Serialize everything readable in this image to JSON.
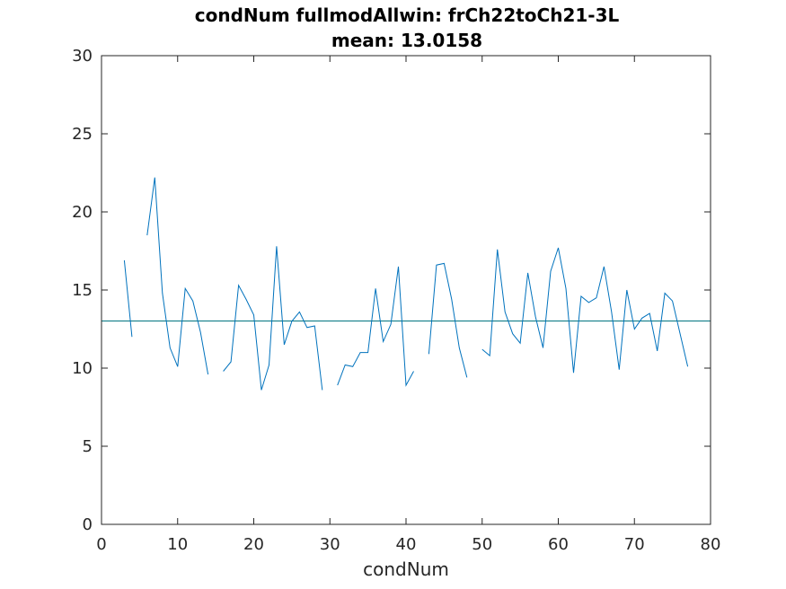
{
  "chart_data": {
    "type": "line",
    "title": "condNum fullmodAllwin: frCh22toCh21-3L",
    "subtitle": "mean: 13.0158",
    "xlabel": "condNum",
    "ylabel": "",
    "xlim": [
      0,
      80
    ],
    "ylim": [
      0,
      30
    ],
    "xticks": [
      0,
      10,
      20,
      30,
      40,
      50,
      60,
      70,
      80
    ],
    "yticks": [
      0,
      5,
      10,
      15,
      20,
      25,
      30
    ],
    "grid": false,
    "colors": {
      "series": "#0072BD",
      "mean_line": "#007480",
      "top_limit": "#C00000",
      "axes": "#262626"
    },
    "series": [
      {
        "x": [
          3,
          4,
          5,
          6,
          7,
          8,
          9,
          10,
          11,
          12,
          13,
          14,
          15,
          16,
          17,
          18,
          19,
          20,
          21,
          22,
          23,
          24,
          25,
          26,
          27,
          28,
          29,
          30,
          31,
          32,
          33,
          34,
          35,
          36,
          37,
          38,
          39,
          40,
          41,
          42,
          43,
          44,
          45,
          46,
          47,
          48,
          49,
          50,
          51,
          52,
          53,
          54,
          55,
          56,
          57,
          58,
          59,
          60,
          61,
          62,
          63,
          64,
          65,
          66,
          67,
          68,
          69,
          70,
          71,
          72,
          73,
          74,
          75,
          76,
          77
        ],
        "y": [
          16.9,
          12.0,
          null,
          18.5,
          22.2,
          14.8,
          11.3,
          10.1,
          15.1,
          14.3,
          12.3,
          9.6,
          null,
          9.8,
          10.4,
          15.3,
          14.4,
          13.4,
          8.6,
          10.2,
          17.8,
          11.5,
          13.0,
          13.6,
          12.6,
          12.7,
          8.6,
          null,
          8.9,
          10.2,
          10.1,
          11.0,
          11.0,
          15.1,
          11.7,
          12.8,
          16.5,
          8.9,
          9.8,
          null,
          10.9,
          16.6,
          16.7,
          14.4,
          11.3,
          9.4,
          null,
          11.2,
          10.8,
          17.6,
          13.6,
          12.2,
          11.6,
          16.1,
          13.3,
          11.3,
          16.2,
          17.7,
          15.1,
          9.7,
          14.6,
          14.2,
          14.5,
          16.5,
          13.6,
          9.9,
          15.0,
          12.5,
          13.2,
          13.5,
          11.1,
          14.8,
          14.3,
          12.2,
          10.1
        ]
      }
    ],
    "reference_lines": [
      {
        "axis": "y",
        "value": 13.0158
      },
      {
        "axis": "y",
        "value": 30
      }
    ]
  }
}
